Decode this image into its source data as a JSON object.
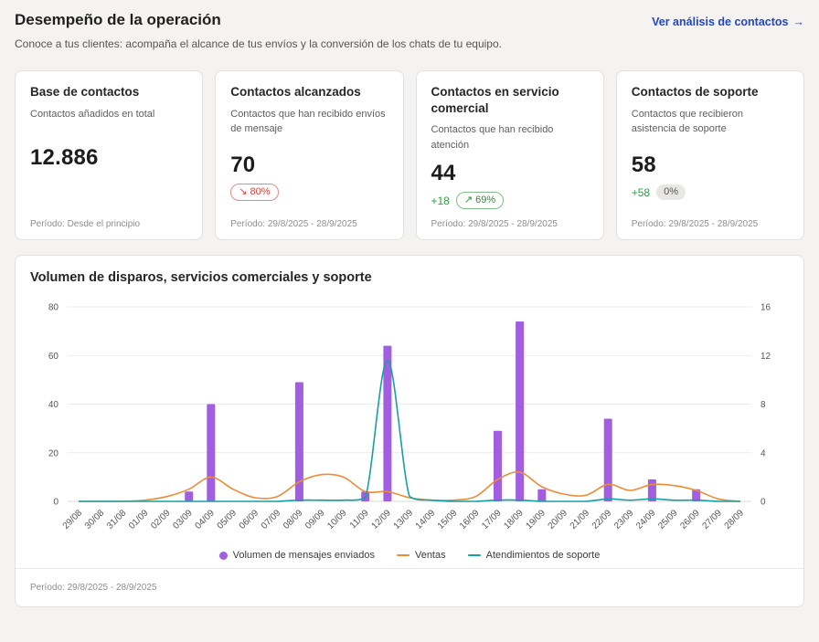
{
  "header": {
    "title": "Desempeño de la operación",
    "subtitle": "Conoce a tus clientes: acompaña el alcance de tus envíos y la conversión de los chats de tu equipo.",
    "link_label": "Ver análisis de contactos",
    "link_arrow": "→"
  },
  "cards": [
    {
      "title": "Base de contactos",
      "description": "Contactos añadidos en total",
      "value": "12.886",
      "period": "Período: Desde el principio"
    },
    {
      "title": "Contactos alcanzados",
      "description": "Contactos que han recibido envíos de mensaje",
      "value": "70",
      "badge": {
        "icon": "↘",
        "label": "80%",
        "type": "down"
      },
      "period": "Período: 29/8/2025 - 28/9/2025"
    },
    {
      "title": "Contactos en servicio comercial",
      "description": "Contactos que han recibido atención",
      "value": "44",
      "delta": "+18",
      "badge": {
        "icon": "↗",
        "label": "69%",
        "type": "up"
      },
      "period": "Período: 29/8/2025 - 28/9/2025"
    },
    {
      "title": "Contactos de soporte",
      "description": "Contactos que recibieron asistencia de soporte",
      "value": "58",
      "delta": "+58",
      "badge": {
        "icon": "",
        "label": "0%",
        "type": "neutral"
      },
      "period": "Período: 29/8/2025 - 28/9/2025"
    }
  ],
  "chart_card": {
    "title": "Volumen de disparos, servicios comerciales y soporte",
    "period": "Período: 29/8/2025 - 28/9/2025"
  },
  "chart_data": {
    "type": "bar",
    "title": "Volumen de disparos, servicios comerciales y soporte",
    "categories": [
      "29/08",
      "30/08",
      "31/08",
      "01/09",
      "02/09",
      "03/09",
      "04/09",
      "05/09",
      "06/09",
      "07/09",
      "08/09",
      "09/09",
      "10/09",
      "11/09",
      "12/09",
      "13/09",
      "14/09",
      "15/09",
      "16/09",
      "17/09",
      "18/09",
      "19/09",
      "20/09",
      "21/09",
      "22/09",
      "23/09",
      "24/09",
      "25/09",
      "26/09",
      "27/09",
      "28/09"
    ],
    "series": [
      {
        "name": "Volumen de mensajes enviados",
        "render": "bar",
        "axis": "left",
        "color": "#a15ee0",
        "values": [
          0,
          0,
          0,
          0,
          0,
          4,
          40,
          0,
          0,
          0,
          49,
          0,
          0,
          4,
          64,
          0,
          0,
          0,
          0,
          29,
          74,
          5,
          0,
          0,
          34,
          0,
          9,
          0,
          5,
          0,
          0
        ]
      },
      {
        "name": "Ventas",
        "render": "line",
        "axis": "right",
        "color": "#ee8c35",
        "values": [
          0,
          0,
          0,
          0.1,
          0.4,
          1,
          2,
          1,
          0.3,
          0.4,
          1.6,
          2.2,
          2,
          0.8,
          0.8,
          0.3,
          0.1,
          0.1,
          0.4,
          1.8,
          2.4,
          1.2,
          0.6,
          0.5,
          1.4,
          0.9,
          1.4,
          1.3,
          0.9,
          0.2,
          0
        ]
      },
      {
        "name": "Atendimientos de soporte",
        "render": "line",
        "axis": "right",
        "color": "#179fa4",
        "values": [
          0,
          0,
          0,
          0,
          0,
          0,
          0,
          0,
          0,
          0,
          0.1,
          0.1,
          0.1,
          0.3,
          11.6,
          0.4,
          0.1,
          0,
          0,
          0.1,
          0.1,
          0,
          0,
          0,
          0.2,
          0.1,
          0.2,
          0.1,
          0.1,
          0,
          0
        ]
      }
    ],
    "left_axis": {
      "min": 0,
      "max": 80,
      "step": 20
    },
    "right_axis": {
      "min": 0,
      "max": 16,
      "step": 4
    },
    "grid": true,
    "legend_position": "bottom"
  },
  "colors": {
    "link_blue": "#2246c4",
    "badge_down_red": "#cf4840",
    "badge_up_green": "#2f8a3c",
    "delta_green": "#2f9e44",
    "background": "#f4f3f1"
  }
}
